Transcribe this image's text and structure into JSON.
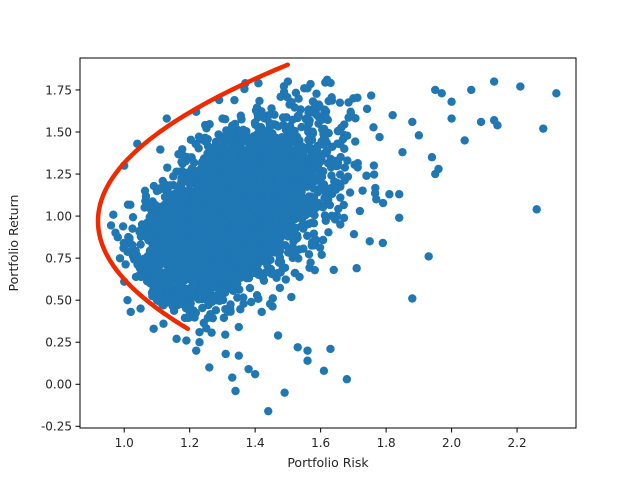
{
  "chart_data": {
    "type": "scatter",
    "title": "",
    "xlabel": "Portfolio Risk",
    "ylabel": "Portfolio Return",
    "xlim": [
      0.865,
      2.38
    ],
    "ylim": [
      -0.26,
      1.94
    ],
    "grid": false,
    "legend": "none",
    "xticks": [
      1.0,
      1.2,
      1.4,
      1.6,
      1.8,
      2.0,
      2.2
    ],
    "yticks": [
      -0.25,
      0.0,
      0.25,
      0.5,
      0.75,
      1.0,
      1.25,
      1.5,
      1.75
    ],
    "colors": {
      "scatter": "#1f77b4",
      "frontier": "#ee2a00"
    },
    "series": [
      {
        "kind": "scatter",
        "cloud": {
          "center": [
            1.33,
            1.02
          ],
          "spread": [
            0.14,
            0.26
          ],
          "count": 4000,
          "seed": 7
        },
        "points": [
          [
            1.02,
            0.43
          ],
          [
            1.09,
            0.33
          ],
          [
            1.12,
            0.36
          ],
          [
            1.16,
            0.27
          ],
          [
            1.19,
            0.26
          ],
          [
            1.22,
            0.2
          ],
          [
            1.26,
            0.1
          ],
          [
            1.31,
            0.18
          ],
          [
            1.33,
            0.04
          ],
          [
            1.34,
            -0.04
          ],
          [
            1.38,
            0.09
          ],
          [
            1.4,
            0.06
          ],
          [
            1.44,
            -0.16
          ],
          [
            1.49,
            -0.05
          ],
          [
            1.53,
            0.22
          ],
          [
            1.56,
            0.2
          ],
          [
            1.61,
            0.08
          ],
          [
            1.68,
            0.03
          ],
          [
            1.63,
            0.21
          ],
          [
            1.56,
            0.14
          ],
          [
            1.88,
            0.51
          ],
          [
            1.93,
            0.76
          ],
          [
            1.84,
            0.99
          ],
          [
            1.64,
            0.68
          ],
          [
            1.71,
            0.69
          ],
          [
            1.75,
            0.85
          ],
          [
            1.79,
            0.84
          ],
          [
            2.26,
            1.04
          ],
          [
            2.28,
            1.52
          ],
          [
            2.32,
            1.73
          ],
          [
            2.21,
            1.77
          ],
          [
            2.13,
            1.8
          ],
          [
            2.06,
            1.75
          ],
          [
            2.0,
            1.68
          ],
          [
            2.14,
            1.54
          ],
          [
            2.13,
            1.57
          ],
          [
            2.09,
            1.56
          ],
          [
            2.04,
            1.45
          ],
          [
            2.0,
            1.58
          ],
          [
            1.97,
            1.73
          ],
          [
            1.95,
            1.75
          ],
          [
            1.88,
            1.56
          ],
          [
            1.9,
            1.48
          ],
          [
            1.94,
            1.35
          ],
          [
            1.96,
            1.28
          ],
          [
            1.95,
            1.25
          ],
          [
            1.85,
            1.38
          ],
          [
            1.84,
            1.13
          ],
          [
            1.81,
            1.13
          ],
          [
            1.77,
            1.1
          ],
          [
            1.72,
            1.03
          ],
          [
            1.66,
            0.95
          ],
          [
            1.69,
            1.14
          ],
          [
            1.74,
            1.24
          ],
          [
            1.78,
            1.47
          ],
          [
            1.82,
            1.6
          ],
          [
            1.7,
            1.7
          ],
          [
            1.62,
            1.81
          ],
          [
            1.56,
            1.76
          ],
          [
            1.41,
            1.79
          ],
          [
            1.37,
            1.79
          ],
          [
            1.5,
            1.8
          ],
          [
            1.55,
            1.76
          ],
          [
            1.29,
            1.69
          ],
          [
            1.22,
            1.62
          ],
          [
            1.13,
            1.58
          ],
          [
            1.04,
            1.43
          ],
          [
            1.0,
            1.3
          ],
          [
            1.07,
            0.87
          ],
          [
            1.08,
            0.6
          ],
          [
            1.0,
            0.61
          ],
          [
            1.01,
            0.5
          ],
          [
            1.05,
            0.45
          ],
          [
            1.1,
            0.5
          ],
          [
            1.35,
            0.34
          ],
          [
            1.42,
            0.43
          ],
          [
            1.47,
            0.29
          ],
          [
            1.23,
            0.25
          ],
          [
            1.28,
            0.44
          ],
          [
            1.35,
            0.17
          ],
          [
            1.15,
            0.46
          ],
          [
            1.23,
            0.31
          ]
        ]
      },
      {
        "kind": "line",
        "curve": {
          "form": "hyperbola",
          "min_risk": 0.92,
          "at_return": 0.97,
          "width": 0.67,
          "return_range": [
            0.33,
            1.9
          ]
        }
      }
    ]
  }
}
